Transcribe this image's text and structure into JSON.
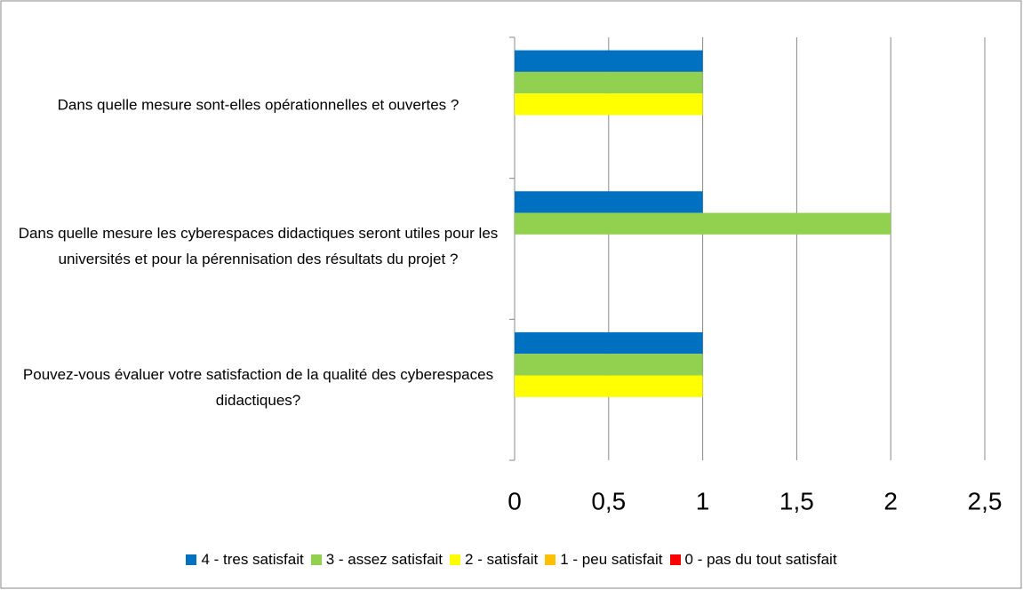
{
  "chart_data": {
    "type": "hbar",
    "categories": [
      "Dans quelle mesure sont-elles opérationnelles et ouvertes ?",
      "Dans quelle mesure les cyberespaces didactiques seront utiles pour les universités et pour la pérennisation des résultats du projet ?",
      "Pouvez-vous évaluer votre satisfaction de la qualité des cyberespaces didactiques?"
    ],
    "series": [
      {
        "name": "4 - tres satisfait",
        "color": "#0070c0",
        "values": [
          1,
          1,
          1
        ]
      },
      {
        "name": "3 - assez satisfait",
        "color": "#92d050",
        "values": [
          1,
          2,
          1
        ]
      },
      {
        "name": "2 - satisfait",
        "color": "#ffff00",
        "values": [
          1,
          0,
          1
        ]
      },
      {
        "name": "1 - peu satisfait",
        "color": "#ffc000",
        "values": [
          0,
          0,
          0
        ]
      },
      {
        "name": "0 - pas du tout satisfait",
        "color": "#ff0000",
        "values": [
          0,
          0,
          0
        ]
      }
    ],
    "xlim": [
      0,
      2.5
    ],
    "xticks": [
      0,
      {
        "value": 0.5,
        "label": "0,5"
      },
      1,
      {
        "value": 1.5,
        "label": "1,5"
      },
      2,
      {
        "value": 2.5,
        "label": "2,5"
      }
    ],
    "grid": true,
    "legend": "bottom"
  }
}
